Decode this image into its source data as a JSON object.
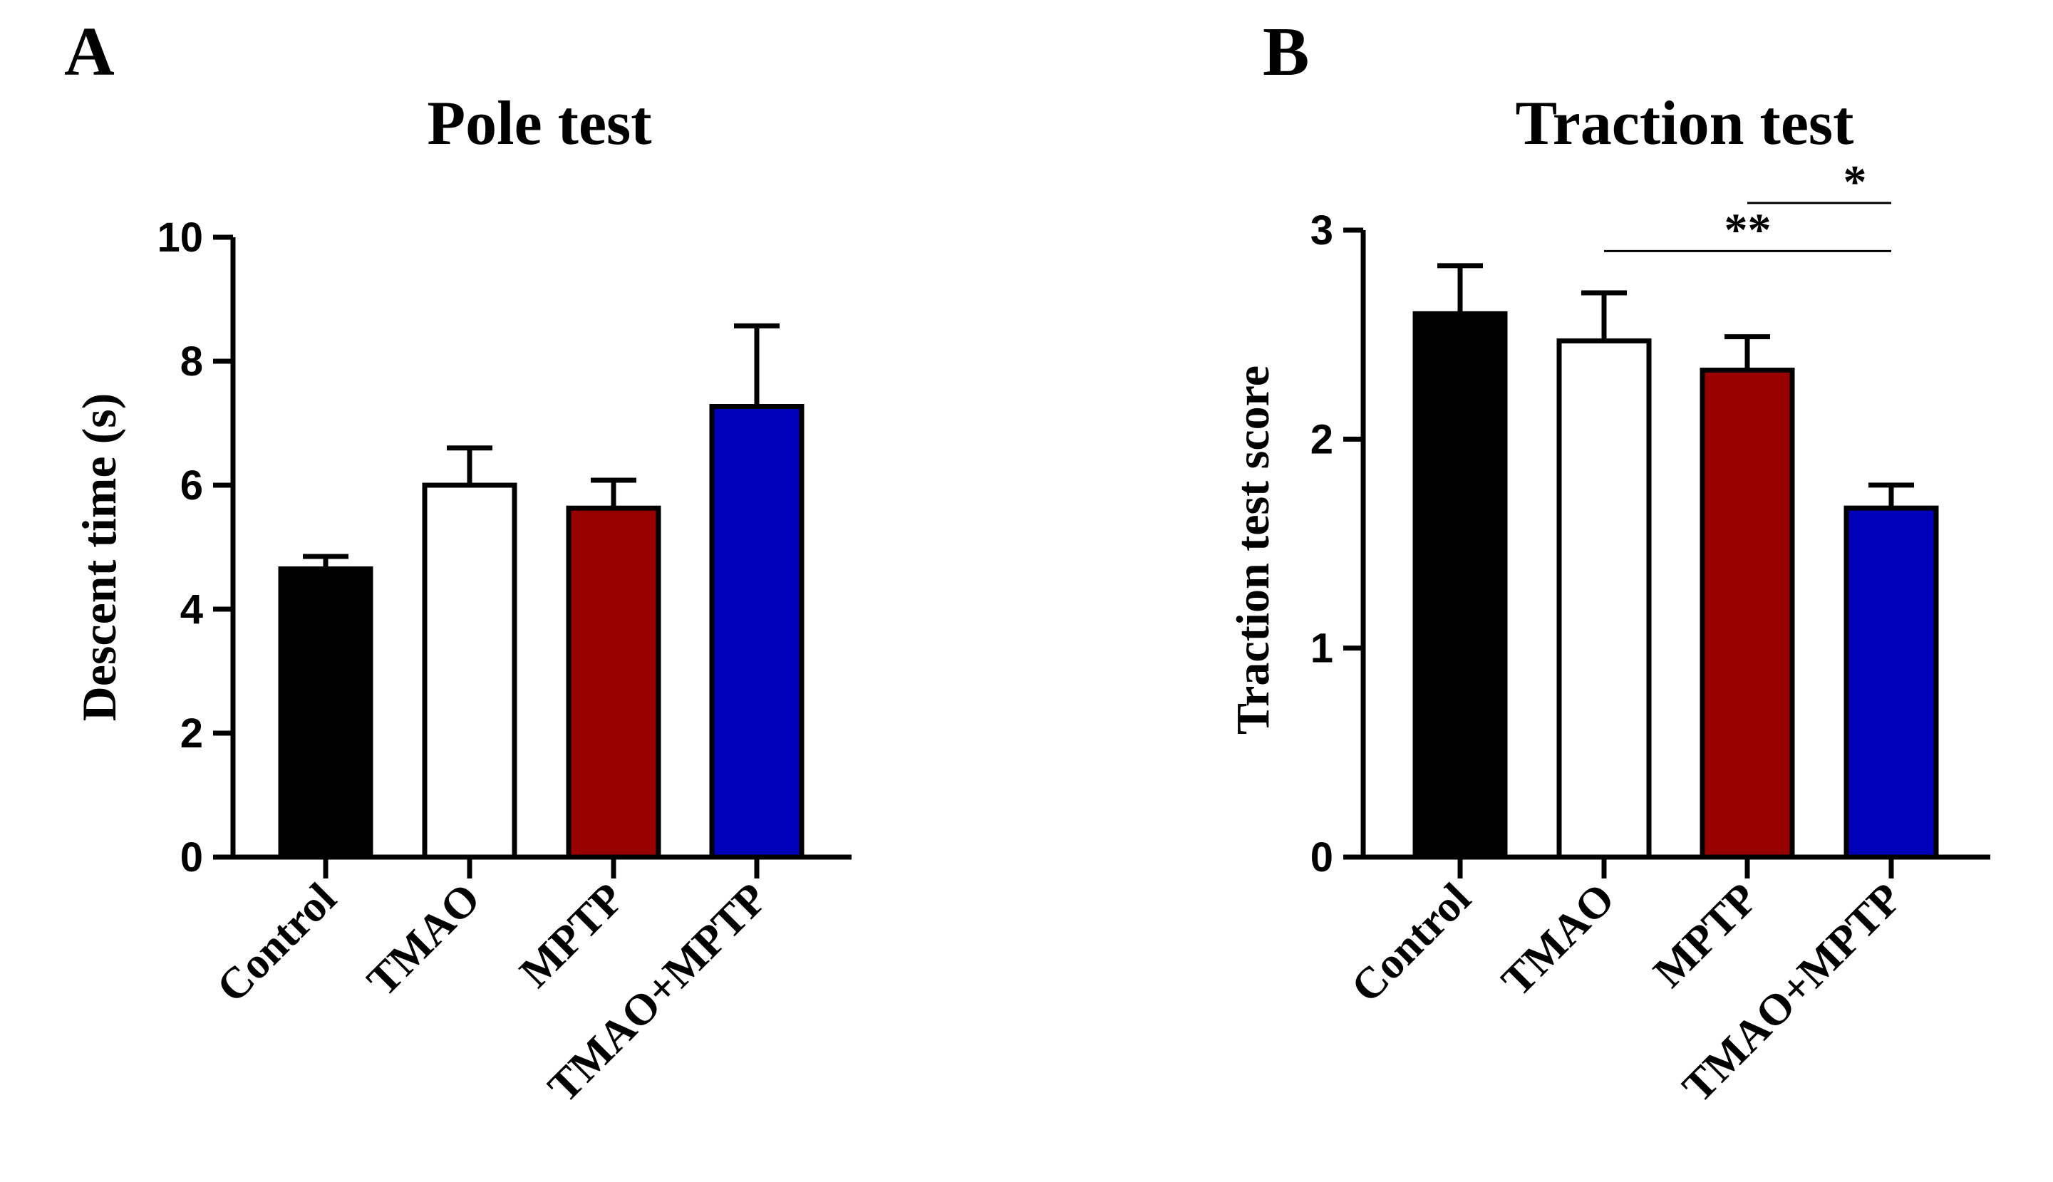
{
  "figure": {
    "panels": [
      {
        "letter": "A",
        "title": "Pole test",
        "ylabel": "Descent time (s)",
        "yticks": [
          "0",
          "2",
          "4",
          "6",
          "8",
          "10"
        ],
        "significance": []
      },
      {
        "letter": "B",
        "title": "Traction test",
        "ylabel": "Traction test score",
        "yticks": [
          "0",
          "1",
          "2",
          "3"
        ],
        "significance": [
          {
            "from": 1,
            "to": 3,
            "label": "**",
            "height": 2.9
          },
          {
            "from": 2,
            "to": 3,
            "label": "*",
            "height": 3.13
          }
        ]
      }
    ]
  },
  "chart_data": [
    {
      "type": "bar",
      "title": "Pole test",
      "xlabel": "",
      "ylabel": "Descent time (s)",
      "categories": [
        "Control",
        "TMAO",
        "MPTP",
        "TMAO+MPTP"
      ],
      "values": [
        4.65,
        6.0,
        5.63,
        7.27
      ],
      "errors": [
        0.2,
        0.6,
        0.45,
        1.3
      ],
      "colors": [
        "#000000",
        "#ffffff",
        "#990000",
        "#0000bb"
      ],
      "ylim": [
        0,
        10
      ],
      "grid": false
    },
    {
      "type": "bar",
      "title": "Traction test",
      "xlabel": "",
      "ylabel": "Traction test score",
      "categories": [
        "Control",
        "TMAO",
        "MPTP",
        "TMAO+MPTP"
      ],
      "values": [
        2.6,
        2.47,
        2.33,
        1.67
      ],
      "errors": [
        0.23,
        0.23,
        0.16,
        0.11
      ],
      "colors": [
        "#000000",
        "#ffffff",
        "#990000",
        "#0000bb"
      ],
      "ylim": [
        0,
        3
      ],
      "grid": false
    }
  ]
}
